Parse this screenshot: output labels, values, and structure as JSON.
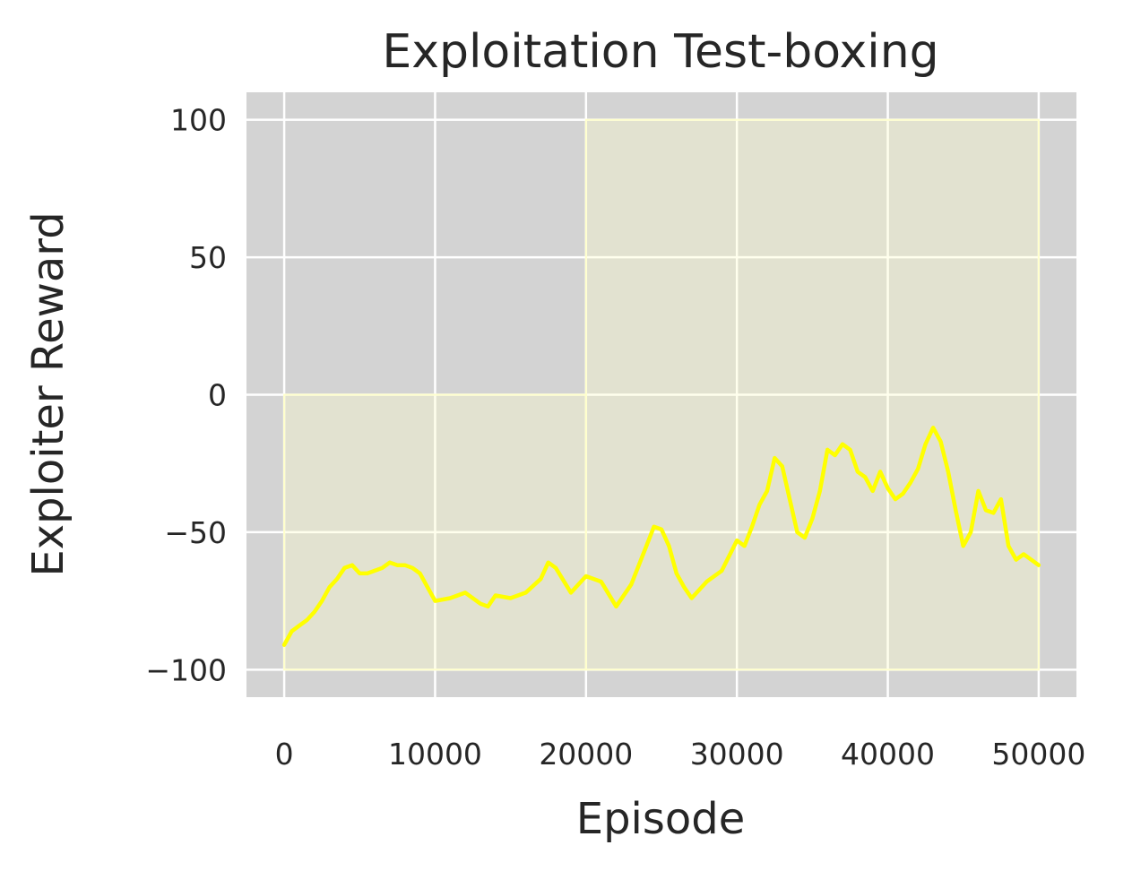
{
  "chart_data": {
    "type": "line",
    "title": "Exploitation Test-boxing",
    "xlabel": "Episode",
    "ylabel": "Exploiter Reward",
    "xlim": [
      -2500,
      52500
    ],
    "ylim": [
      -110,
      110
    ],
    "xticks": [
      0,
      10000,
      20000,
      30000,
      40000,
      50000
    ],
    "xtick_labels": [
      "0",
      "10000",
      "20000",
      "30000",
      "40000",
      "50000"
    ],
    "yticks": [
      -100,
      -50,
      0,
      50,
      100
    ],
    "ytick_labels": [
      "−100",
      "−50",
      "0",
      "50",
      "100"
    ],
    "grid": true,
    "background_color": "#d3d3d3",
    "grid_color": "#ffffff",
    "line_color": "#ffff00",
    "band_color": "#ffffcc",
    "bands": [
      {
        "x": [
          0,
          20000
        ],
        "low": -100,
        "high": 0
      },
      {
        "x": [
          20000,
          50000
        ],
        "low": -100,
        "high": 100
      }
    ],
    "series": [
      {
        "x": [
          0,
          500,
          1000,
          1500,
          2000,
          2500,
          3000,
          3500,
          4000,
          4500,
          5000,
          5500,
          6000,
          6500,
          7000,
          7500,
          8000,
          8500,
          9000,
          9500,
          10000,
          11000,
          12000,
          13000,
          13500,
          14000,
          15000,
          16000,
          17000,
          17500,
          18000,
          19000,
          20000,
          21000,
          22000,
          23000,
          24000,
          24500,
          25000,
          25500,
          26000,
          26500,
          27000,
          28000,
          29000,
          30000,
          30500,
          31000,
          31500,
          32000,
          32500,
          33000,
          33500,
          34000,
          34500,
          35000,
          35500,
          36000,
          36500,
          37000,
          37500,
          38000,
          38500,
          39000,
          39500,
          40000,
          40500,
          41000,
          41500,
          42000,
          42500,
          43000,
          43500,
          44000,
          44500,
          45000,
          45500,
          46000,
          46500,
          47000,
          47500,
          48000,
          48500,
          49000,
          49500,
          50000
        ],
        "y": [
          -91,
          -86,
          -84,
          -82,
          -79,
          -75,
          -70,
          -67,
          -63,
          -62,
          -65,
          -65,
          -64,
          -63,
          -61,
          -62,
          -62,
          -63,
          -65,
          -70,
          -75,
          -74,
          -72,
          -76,
          -77,
          -73,
          -74,
          -72,
          -67,
          -61,
          -63,
          -72,
          -66,
          -68,
          -77,
          -69,
          -55,
          -48,
          -49,
          -55,
          -65,
          -70,
          -74,
          -68,
          -64,
          -53,
          -55,
          -48,
          -40,
          -35,
          -23,
          -26,
          -38,
          -50,
          -52,
          -45,
          -35,
          -20,
          -22,
          -18,
          -20,
          -28,
          -30,
          -35,
          -28,
          -34,
          -38,
          -36,
          -32,
          -27,
          -18,
          -12,
          -17,
          -28,
          -42,
          -55,
          -50,
          -35,
          -42,
          -43,
          -38,
          -55,
          -60,
          -58,
          -60,
          -62
        ]
      }
    ]
  }
}
